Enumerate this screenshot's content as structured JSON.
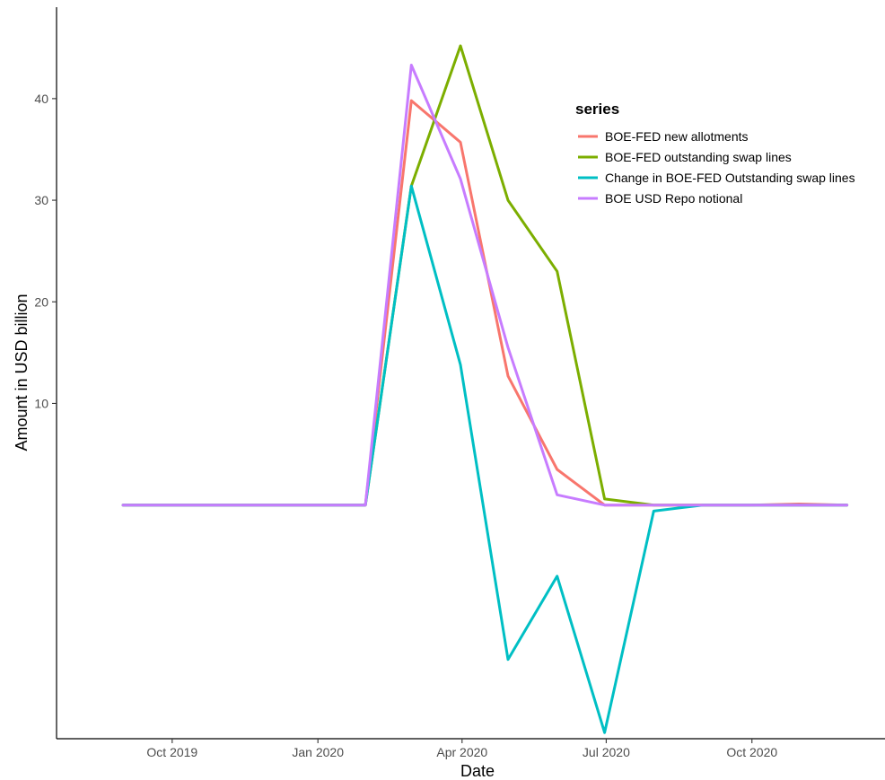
{
  "chart_data": {
    "type": "line",
    "xlabel": "Date",
    "ylabel": "Amount in USD billion",
    "x_ticks": [
      "Oct 2019",
      "Jan 2020",
      "Apr 2020",
      "Jul 2020",
      "Oct 2020"
    ],
    "x_tick_dates": [
      "2019-10-01",
      "2020-01-01",
      "2020-04-01",
      "2020-07-01",
      "2020-10-01"
    ],
    "y_ticks": [
      10,
      20,
      30,
      40
    ],
    "ylim": [
      -23,
      49
    ],
    "xlim": [
      "2019-07-20",
      "2020-12-24"
    ],
    "legend_title": "series",
    "legend_position": "top-right",
    "grid": false,
    "x": [
      "2019-08-31",
      "2019-09-30",
      "2019-10-31",
      "2019-11-30",
      "2019-12-31",
      "2020-01-31",
      "2020-02-29",
      "2020-03-31",
      "2020-04-30",
      "2020-05-31",
      "2020-06-30",
      "2020-07-31",
      "2020-08-31",
      "2020-09-30",
      "2020-10-31",
      "2020-11-30"
    ],
    "series": [
      {
        "name": "BOE-FED new allotments",
        "color": "#F8766D",
        "values": [
          0,
          0,
          0,
          0,
          0,
          0,
          39.8,
          35.7,
          12.7,
          3.5,
          0,
          0,
          0,
          0,
          0.1,
          0
        ]
      },
      {
        "name": "BOE-FED outstanding swap lines",
        "color": "#7CAE00",
        "values": [
          0,
          0,
          0,
          0,
          0,
          0,
          31.4,
          45.2,
          30.0,
          23.0,
          0.6,
          0,
          0,
          0,
          0,
          0
        ]
      },
      {
        "name": "Change in BOE-FED Outstanding swap lines",
        "color": "#00BFC4",
        "values": [
          0,
          0,
          0,
          0,
          0,
          0,
          31.4,
          13.8,
          -15.2,
          -7.0,
          -22.4,
          -0.6,
          0,
          0,
          0,
          0
        ]
      },
      {
        "name": "BOE USD Repo notional",
        "color": "#C77CFF",
        "values": [
          0,
          0,
          0,
          0,
          0,
          0,
          43.3,
          32.1,
          15.5,
          1.0,
          0,
          0,
          0,
          0,
          0,
          0
        ]
      }
    ]
  }
}
